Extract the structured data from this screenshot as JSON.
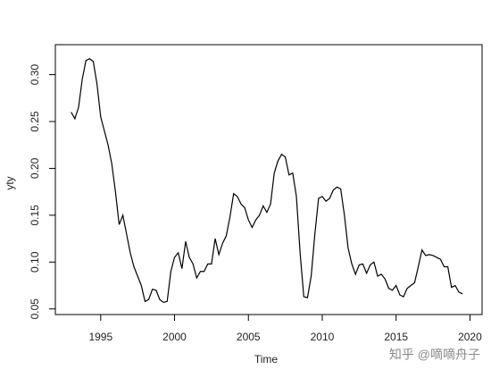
{
  "chart_data": {
    "type": "line",
    "x_label": "Time",
    "y_label": "yty",
    "watermark": "知乎 @嘀嘀舟子",
    "color": "#000000",
    "xlim": [
      1991.93,
      2020.82
    ],
    "ylim": [
      0.044,
      0.332
    ],
    "xticks": [
      1995,
      2000,
      2005,
      2010,
      2015,
      2020
    ],
    "yticks": [
      0.05,
      {
        "value": 0.1,
        "label": "0.10"
      },
      0.15,
      {
        "value": 0.2,
        "label": "0.20"
      },
      0.25,
      {
        "value": 0.3,
        "label": "0.30"
      }
    ],
    "x": [
      1993,
      1993.25,
      1993.5,
      1993.75,
      1994,
      1994.25,
      1994.5,
      1994.75,
      1995,
      1995.25,
      1995.5,
      1995.75,
      1996,
      1996.25,
      1996.5,
      1996.75,
      1997,
      1997.25,
      1997.5,
      1997.75,
      1998,
      1998.25,
      1998.5,
      1998.75,
      1999,
      1999.25,
      1999.5,
      1999.75,
      2000,
      2000.25,
      2000.5,
      2000.75,
      2001,
      2001.25,
      2001.5,
      2001.75,
      2002,
      2002.25,
      2002.5,
      2002.75,
      2003,
      2003.25,
      2003.5,
      2003.75,
      2004,
      2004.25,
      2004.5,
      2004.75,
      2005,
      2005.25,
      2005.5,
      2005.75,
      2006,
      2006.25,
      2006.5,
      2006.75,
      2007,
      2007.25,
      2007.5,
      2007.75,
      2008,
      2008.25,
      2008.5,
      2008.75,
      2009,
      2009.25,
      2009.5,
      2009.75,
      2010,
      2010.25,
      2010.5,
      2010.75,
      2011,
      2011.25,
      2011.5,
      2011.75,
      2012,
      2012.25,
      2012.5,
      2012.75,
      2013,
      2013.25,
      2013.5,
      2013.75,
      2014,
      2014.25,
      2014.5,
      2014.75,
      2015,
      2015.25,
      2015.5,
      2015.75,
      2016,
      2016.25,
      2016.5,
      2016.75,
      2017,
      2017.25,
      2017.5,
      2017.75,
      2018,
      2018.25,
      2018.5,
      2018.75,
      2019,
      2019.25,
      2019.5
    ],
    "values": [
      0.26,
      0.253,
      0.265,
      0.295,
      0.315,
      0.317,
      0.314,
      0.29,
      0.255,
      0.24,
      0.225,
      0.205,
      0.175,
      0.14,
      0.15,
      0.13,
      0.11,
      0.095,
      0.085,
      0.075,
      0.058,
      0.06,
      0.071,
      0.07,
      0.06,
      0.057,
      0.058,
      0.09,
      0.105,
      0.11,
      0.093,
      0.122,
      0.105,
      0.098,
      0.083,
      0.09,
      0.09,
      0.098,
      0.098,
      0.125,
      0.108,
      0.12,
      0.128,
      0.148,
      0.173,
      0.17,
      0.162,
      0.158,
      0.145,
      0.137,
      0.145,
      0.15,
      0.16,
      0.153,
      0.162,
      0.195,
      0.208,
      0.215,
      0.212,
      0.193,
      0.195,
      0.17,
      0.11,
      0.063,
      0.062,
      0.085,
      0.13,
      0.168,
      0.17,
      0.165,
      0.168,
      0.177,
      0.18,
      0.178,
      0.15,
      0.115,
      0.098,
      0.087,
      0.097,
      0.098,
      0.088,
      0.097,
      0.1,
      0.085,
      0.087,
      0.082,
      0.072,
      0.07,
      0.075,
      0.065,
      0.063,
      0.072,
      0.075,
      0.078,
      0.095,
      0.113,
      0.107,
      0.108,
      0.107,
      0.105,
      0.103,
      0.095,
      0.095,
      0.073,
      0.075,
      0.068,
      0.066
    ]
  }
}
